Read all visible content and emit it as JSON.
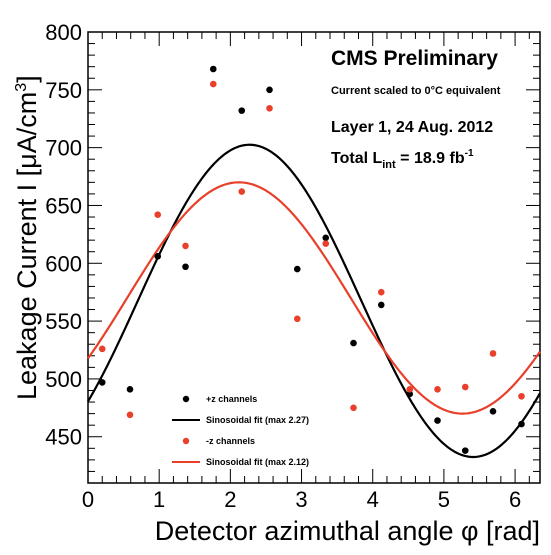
{
  "chart_data": {
    "type": "scatter",
    "xlabel": "Detector azimuthal angle φ [rad]",
    "ylabel_parts": {
      "main": "Leakage Current I [",
      "mu": "μ",
      "unit": "A/cm",
      "sup": "3",
      "close": "]"
    },
    "xlim": [
      0,
      6.35
    ],
    "ylim": [
      410,
      800
    ],
    "xticks": [
      0,
      1,
      2,
      3,
      4,
      5,
      6
    ],
    "yticks": [
      450,
      500,
      550,
      600,
      650,
      700,
      750,
      800
    ],
    "x_tick_labels": [
      "0",
      "1",
      "2",
      "3",
      "4",
      "5",
      "6"
    ],
    "y_tick_labels": [
      "450",
      "500",
      "550",
      "600",
      "650",
      "700",
      "750",
      "800"
    ],
    "grid": false,
    "legend_position": "bottom-left",
    "series": [
      {
        "name": "+z channels",
        "kind": "points",
        "color": "#000000",
        "x": [
          0.2,
          0.59,
          0.98,
          1.37,
          1.76,
          2.16,
          2.55,
          2.94,
          3.34,
          3.73,
          4.12,
          4.52,
          4.91,
          5.3,
          5.69,
          6.09
        ],
        "y": [
          497,
          491,
          606,
          597,
          768,
          732,
          750,
          595,
          622,
          531,
          564,
          487,
          464,
          438,
          472,
          461
        ]
      },
      {
        "name": "Sinosoidal fit (max 2.27)",
        "kind": "line",
        "color": "#000000",
        "fit": {
          "offset": 567.5,
          "amplitude": 135,
          "max_at": 2.27
        }
      },
      {
        "name": "-z channels",
        "kind": "points",
        "color": "#e8402a",
        "x": [
          0.2,
          0.59,
          0.98,
          1.37,
          1.76,
          2.16,
          2.55,
          2.94,
          3.34,
          3.73,
          4.12,
          4.52,
          4.91,
          5.3,
          5.69,
          6.09
        ],
        "y": [
          526,
          469,
          642,
          615,
          755,
          662,
          734,
          552,
          617,
          475,
          575,
          491,
          491,
          493,
          522,
          485
        ]
      },
      {
        "name": "Sinosoidal fit (max 2.12)",
        "kind": "line",
        "color": "#e8402a",
        "fit": {
          "offset": 570,
          "amplitude": 100,
          "max_at": 2.12
        }
      }
    ],
    "annotations": {
      "title": "CMS Preliminary",
      "subtitle": "Current scaled to 0°C equivalent",
      "line1": "Layer 1, 24 Aug. 2012",
      "lumi_prefix": "Total L",
      "lumi_sub": "int",
      "lumi_value": " = 18.9 fb",
      "lumi_sup": "-1"
    }
  }
}
